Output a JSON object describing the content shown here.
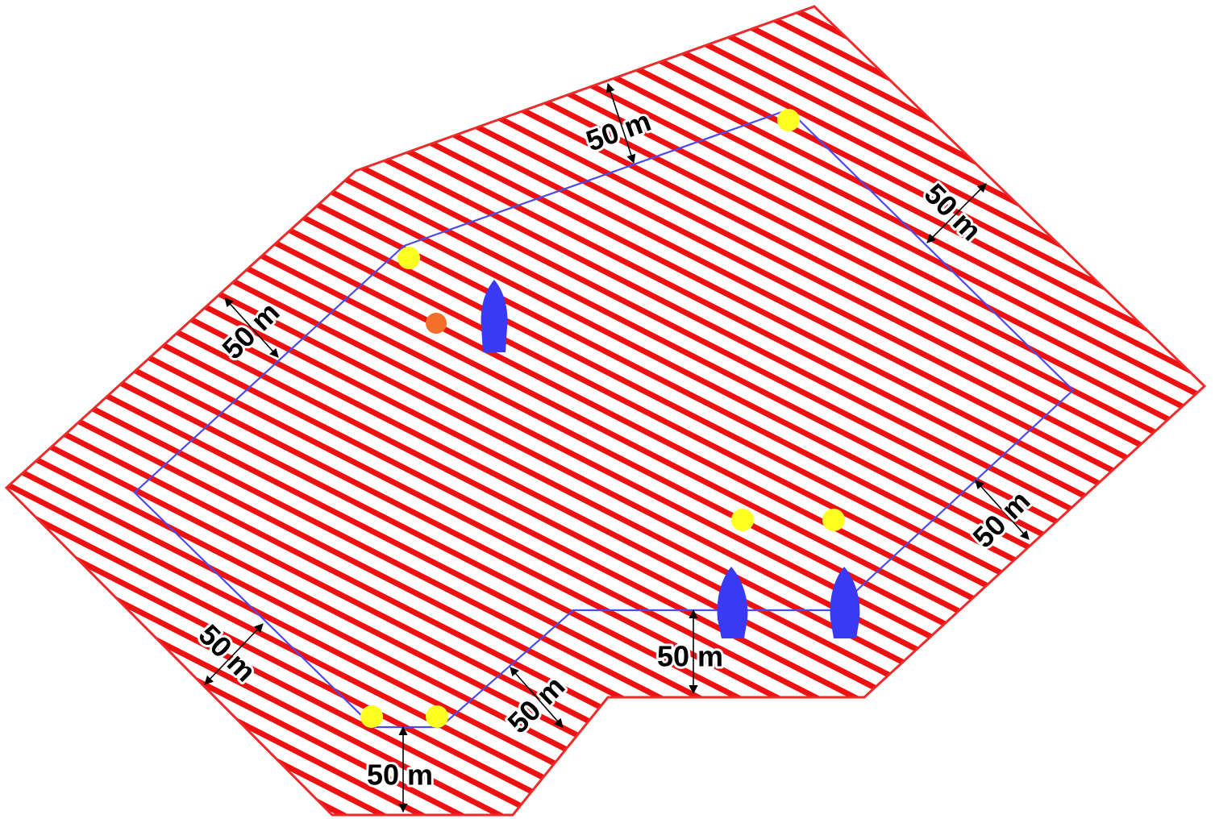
{
  "colors": {
    "zone_stroke": "#ee2a2a",
    "hatch": "#ee1111",
    "course_line": "#4a4af0",
    "buoy_yellow": "#ffff22",
    "buoy_orange": "#f4702a",
    "boat": "#3a3af5",
    "arrow": "#000000"
  },
  "icons": {
    "buoy": "circle",
    "boat": "boat-hull-icon",
    "dimension": "double-headed-arrow"
  },
  "dimension_labels": [
    "50 m",
    "50 m",
    "50 m",
    "50 m",
    "50 m",
    "50 m",
    "50 m",
    "50 m"
  ]
}
